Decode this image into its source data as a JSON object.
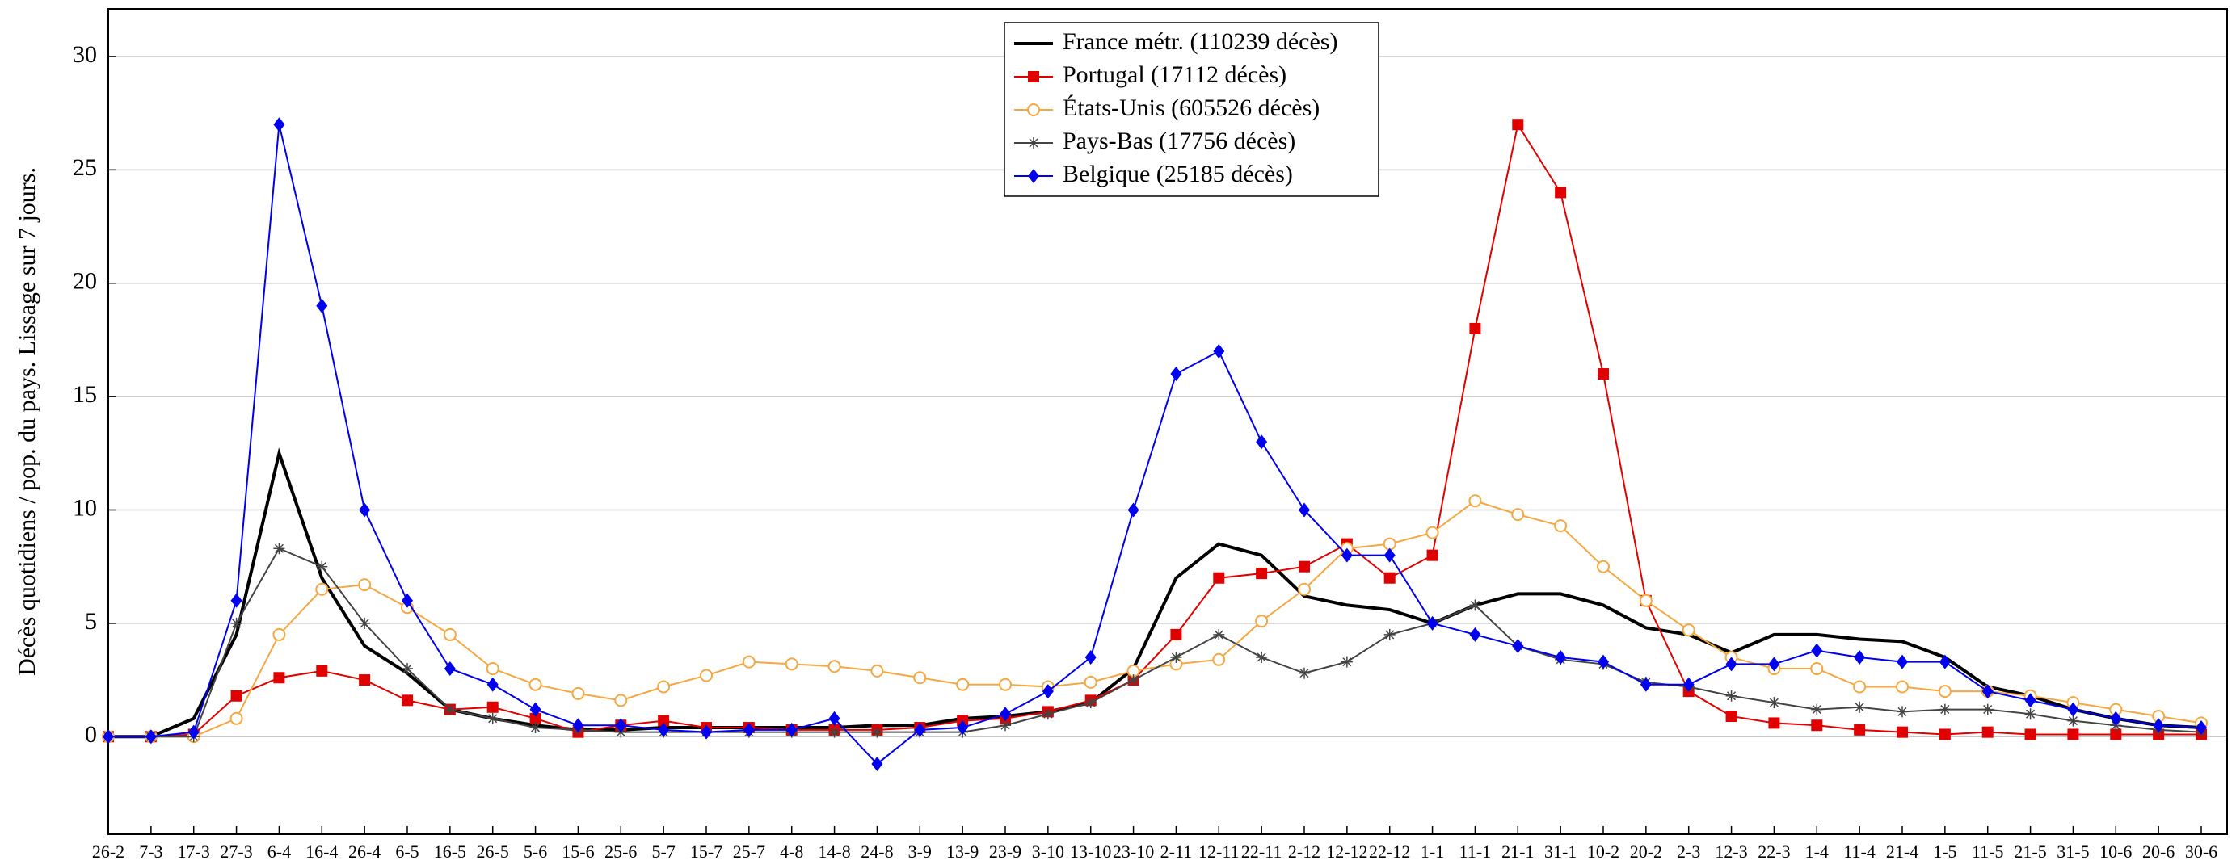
{
  "chart_data": {
    "type": "line",
    "y_label": "Décès quotidiens / pop. du pays. Lissage sur 7 jours.",
    "categories": [
      "26-2",
      "7-3",
      "17-3",
      "27-3",
      "6-4",
      "16-4",
      "26-4",
      "6-5",
      "16-5",
      "26-5",
      "5-6",
      "15-6",
      "25-6",
      "5-7",
      "15-7",
      "25-7",
      "4-8",
      "14-8",
      "24-8",
      "3-9",
      "13-9",
      "23-9",
      "3-10",
      "13-10",
      "23-10",
      "2-11",
      "12-11",
      "22-11",
      "2-12",
      "12-12",
      "22-12",
      "1-1",
      "11-1",
      "21-1",
      "31-1",
      "10-2",
      "20-2",
      "2-3",
      "12-3",
      "22-3",
      "1-4",
      "11-4",
      "21-4",
      "1-5",
      "11-5",
      "21-5",
      "31-5",
      "10-6",
      "20-6",
      "30-6"
    ],
    "series": [
      {
        "name": "France métr. (110239 décès)",
        "color": "#000000",
        "marker": "none",
        "values": [
          0,
          0,
          0.8,
          4.5,
          12.5,
          7,
          4,
          2.8,
          1.2,
          0.8,
          0.5,
          0.3,
          0.3,
          0.4,
          0.4,
          0.4,
          0.4,
          0.4,
          0.5,
          0.5,
          0.8,
          0.9,
          1.1,
          1.5,
          3,
          7,
          8.5,
          8,
          6.2,
          5.8,
          5.6,
          5,
          5.8,
          6.3,
          6.3,
          5.8,
          4.8,
          4.5,
          3.7,
          4.5,
          4.5,
          4.3,
          4.2,
          3.5,
          2.2,
          1.8,
          1.2,
          0.8,
          0.5,
          0.4
        ]
      },
      {
        "name": "Portugal (17112 décès)",
        "color": "#e00000",
        "marker": "square",
        "values": [
          0,
          0,
          0.1,
          1.8,
          2.6,
          2.9,
          2.5,
          1.6,
          1.2,
          1.3,
          0.8,
          0.2,
          0.5,
          0.7,
          0.4,
          0.4,
          0.3,
          0.3,
          0.3,
          0.4,
          0.7,
          0.8,
          1.1,
          1.6,
          2.5,
          4.5,
          7,
          7.2,
          7.5,
          8.5,
          7,
          8,
          18,
          27,
          24,
          16,
          6,
          2,
          0.9,
          0.6,
          0.5,
          0.3,
          0.2,
          0.1,
          0.2,
          0.1,
          0.1,
          0.1,
          0.1,
          0.1
        ]
      },
      {
        "name": "États-Unis (605526 décès)",
        "color": "#f5a742",
        "marker": "circle",
        "values": [
          0,
          0,
          0,
          0.8,
          4.5,
          6.5,
          6.7,
          5.7,
          4.5,
          3,
          2.3,
          1.9,
          1.6,
          2.2,
          2.7,
          3.3,
          3.2,
          3.1,
          2.9,
          2.6,
          2.3,
          2.3,
          2.2,
          2.4,
          2.9,
          3.2,
          3.4,
          5.1,
          6.5,
          8.3,
          8.5,
          9,
          10.4,
          9.8,
          9.3,
          7.5,
          6,
          4.7,
          3.5,
          3,
          3,
          2.2,
          2.2,
          2,
          2,
          1.8,
          1.5,
          1.2,
          0.9,
          0.6
        ]
      },
      {
        "name": "Pays-Bas (17756 décès)",
        "color": "#444444",
        "marker": "star",
        "values": [
          0,
          0,
          0,
          5,
          8.3,
          7.5,
          5,
          3,
          1.2,
          0.8,
          0.4,
          0.3,
          0.2,
          0.2,
          0.2,
          0.2,
          0.2,
          0.2,
          0.2,
          0.2,
          0.2,
          0.5,
          1,
          1.5,
          2.5,
          3.5,
          4.5,
          3.5,
          2.8,
          3.3,
          4.5,
          5,
          5.8,
          4,
          3.4,
          3.2,
          2.4,
          2.2,
          1.8,
          1.5,
          1.2,
          1.3,
          1.1,
          1.2,
          1.2,
          1,
          0.7,
          0.5,
          0.3,
          0.2
        ]
      },
      {
        "name": "Belgique (25185 décès)",
        "color": "#0000ee",
        "marker": "diamond",
        "values": [
          0,
          0,
          0.2,
          6,
          27,
          19,
          10,
          6,
          3,
          2.3,
          1.2,
          0.5,
          0.5,
          0.3,
          0.2,
          0.3,
          0.3,
          0.8,
          -1.2,
          0.3,
          0.4,
          1,
          2,
          3.5,
          10,
          16,
          17,
          13,
          10,
          8,
          8,
          5,
          4.5,
          4,
          3.5,
          3.3,
          2.3,
          2.3,
          3.2,
          3.2,
          3.8,
          3.5,
          3.3,
          3.3,
          2,
          1.6,
          1.2,
          0.8,
          0.5,
          0.4
        ]
      }
    ],
    "ylim": [
      -4.3,
      32.1
    ],
    "yticks": [
      0,
      5,
      10,
      15,
      20,
      25,
      30
    ],
    "grid": true,
    "legend": "top"
  }
}
